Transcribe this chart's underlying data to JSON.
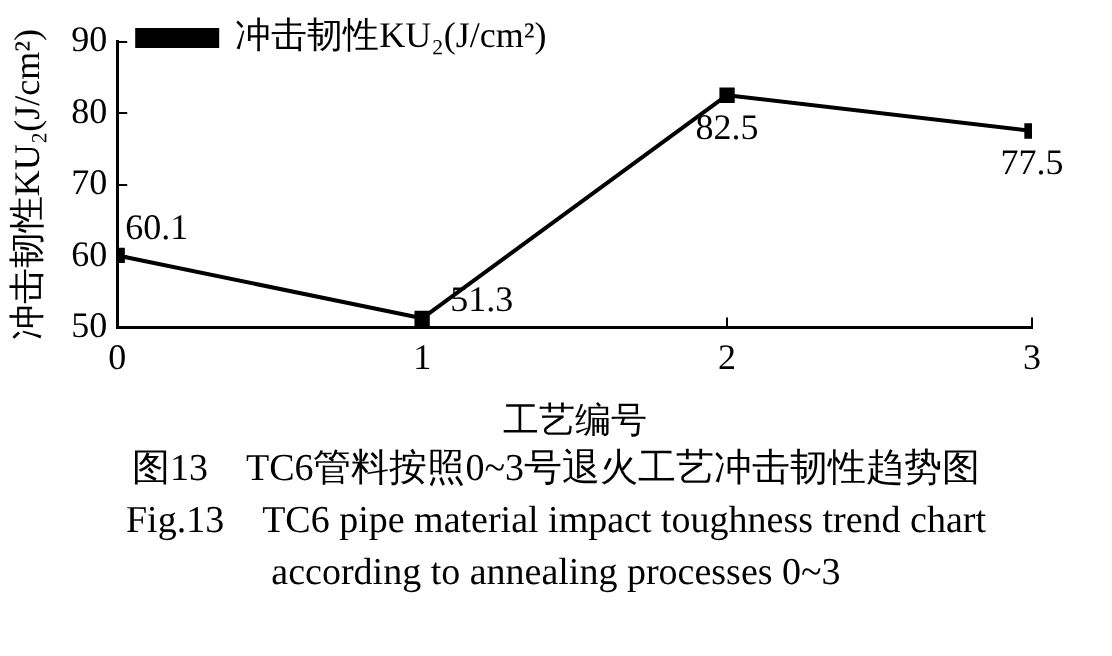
{
  "chart_data": {
    "type": "line",
    "xlabel": "工艺编号",
    "ylabel": "冲击韧性KU₂(J/cm²)",
    "x": [
      0,
      1,
      2,
      3
    ],
    "series": [
      {
        "name": "冲击韧性KU₂(J/cm²)",
        "color": "#000000",
        "values": [
          60.1,
          51.3,
          82.5,
          77.5
        ]
      }
    ],
    "xlim": [
      0,
      3
    ],
    "xticks": [
      0,
      1,
      2,
      3
    ],
    "ylim": [
      50,
      90
    ],
    "yticks": [
      50,
      60,
      70,
      80,
      90
    ],
    "marker": "square",
    "line_style": "solid",
    "legend": "top left",
    "data_labels": true,
    "grid": false,
    "annotations": [
      "图13　TC6管料按照0~3号退火工艺冲击韧性趋势图",
      "Fig.13　TC6 pipe material impact toughness trend chart according to annealing processes 0~3"
    ]
  }
}
